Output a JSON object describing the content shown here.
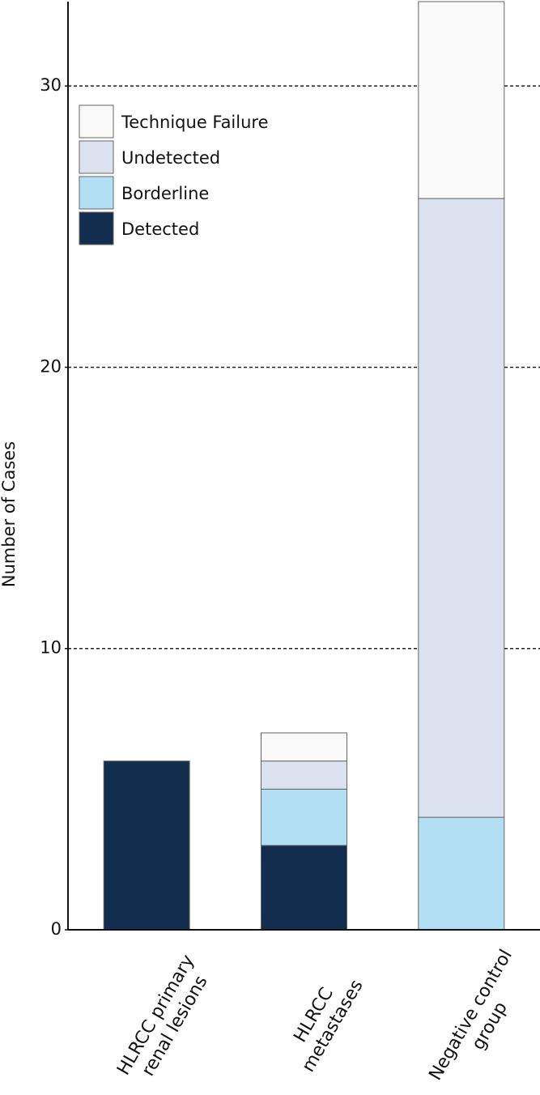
{
  "chart_data": {
    "type": "stacked_bar",
    "y_label": "Number of Cases",
    "categories": [
      "HLRCC primary renal lesions",
      "HLRCC metastases",
      "Negative control group"
    ],
    "series": [
      {
        "name": "Detected",
        "color": "#132d4f",
        "values": [
          6,
          3,
          0
        ]
      },
      {
        "name": "Borderline",
        "color": "#b3dff5",
        "values": [
          0,
          2,
          4
        ]
      },
      {
        "name": "Undetected",
        "color": "#dce2f0",
        "values": [
          0,
          1,
          22
        ]
      },
      {
        "name": "Technique Failure",
        "color": "#f9f9f9",
        "values": [
          0,
          1,
          7
        ]
      }
    ],
    "ylim": [
      0,
      33
    ],
    "yticks": [
      0,
      10,
      20,
      30
    ],
    "grid": true,
    "legend": "upper left"
  }
}
